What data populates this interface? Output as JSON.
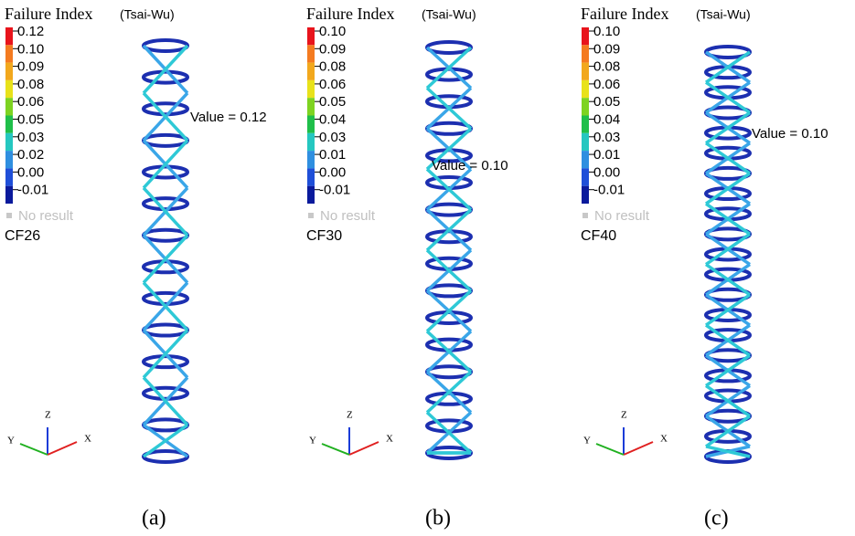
{
  "panels": [
    {
      "title": "Failure Index",
      "subtitle": "(Tsai-Wu)",
      "legend": [
        "0.12",
        "0.10",
        "0.09",
        "0.08",
        "0.06",
        "0.05",
        "0.03",
        "0.02",
        "0.00",
        "-0.01"
      ],
      "no_result": "No result",
      "model": "CF26",
      "value_label": "Value = 0.12",
      "axes": {
        "z": "Z",
        "y": "Y",
        "x": "X"
      },
      "caption": "(a)"
    },
    {
      "title": "Failure Index",
      "subtitle": "(Tsai-Wu)",
      "legend": [
        "0.10",
        "0.09",
        "0.08",
        "0.06",
        "0.05",
        "0.04",
        "0.03",
        "0.01",
        "0.00",
        "-0.01"
      ],
      "no_result": "No result",
      "model": "CF30",
      "value_label": "Value = 0.10",
      "axes": {
        "z": "Z",
        "y": "Y",
        "x": "X"
      },
      "caption": "(b)"
    },
    {
      "title": "Failure Index",
      "subtitle": "(Tsai-Wu)",
      "legend": [
        "0.10",
        "0.09",
        "0.08",
        "0.06",
        "0.05",
        "0.04",
        "0.03",
        "0.01",
        "0.00",
        "-0.01"
      ],
      "no_result": "No result",
      "model": "CF40",
      "value_label": "Value = 0.10",
      "axes": {
        "z": "Z",
        "y": "Y",
        "x": "X"
      },
      "caption": "(c)"
    }
  ]
}
